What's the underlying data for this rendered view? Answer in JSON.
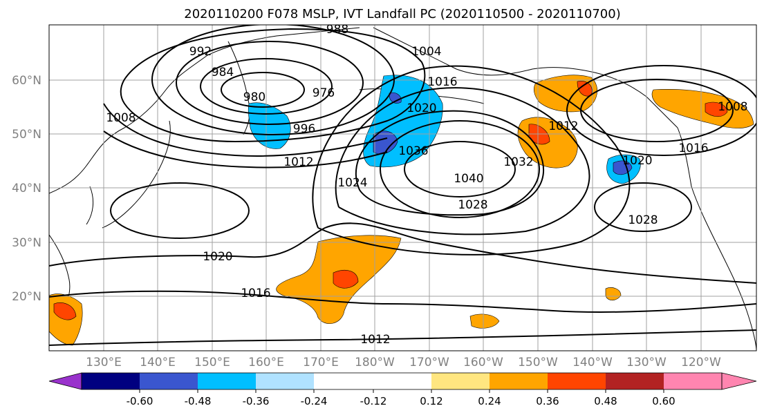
{
  "title": "2020110200 F078 MSLP, IVT Landfall PC (2020110500 - 2020110700)",
  "colors": {
    "land": "#ffffff",
    "grid": "#a0a0a0",
    "isobar": "#000000",
    "pos_low": "#ffe680",
    "pos_mid": "#ffa500",
    "pos_high": "#ff4500",
    "neg_low": "#00bfff",
    "neg_mid": "#3a56cf",
    "neg_high": "#000080"
  },
  "map": {
    "lat_labels": [
      "60°N",
      "50°N",
      "40°N",
      "30°N",
      "20°N"
    ],
    "lon_labels": [
      "130°E",
      "140°E",
      "150°E",
      "160°E",
      "170°E",
      "180°W",
      "170°W",
      "160°W",
      "150°W",
      "140°W",
      "130°W",
      "120°W"
    ],
    "isobar_labels": [
      "992",
      "988",
      "984",
      "980",
      "976",
      "996",
      "1004",
      "1008",
      "1012",
      "1016",
      "1020",
      "1024",
      "1028",
      "1032",
      "1036",
      "1040",
      "1008",
      "1016",
      "1012",
      "1020",
      "1028",
      "1016",
      "1020",
      "1012"
    ]
  },
  "colorbar": {
    "colors": [
      "#9932cc",
      "#000080",
      "#3a56cf",
      "#00bfff",
      "#b0e2ff",
      "#ffffff",
      "#ffffff",
      "#ffe680",
      "#ffa500",
      "#ff4500",
      "#b22222",
      "#ff85b0"
    ],
    "tick_labels": [
      "-0.60",
      "-0.48",
      "-0.36",
      "-0.24",
      "-0.12",
      "0.12",
      "0.24",
      "0.36",
      "0.48",
      "0.60"
    ]
  }
}
